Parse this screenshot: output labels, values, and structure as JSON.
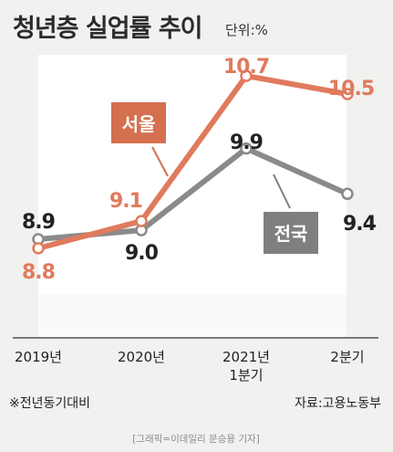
{
  "chart_data": {
    "type": "line",
    "title": "청년층 실업률 추이",
    "unit": "단위:%",
    "categories": [
      "2019년",
      "2020년",
      "2021년\n1분기",
      "2분기"
    ],
    "series": [
      {
        "name": "서울",
        "values": [
          8.8,
          9.1,
          10.7,
          10.5
        ],
        "color": "#e07a5c"
      },
      {
        "name": "전국",
        "values": [
          8.9,
          9.0,
          9.9,
          9.4
        ],
        "color": "#8a8a8a"
      }
    ],
    "value_labels": {
      "서울": [
        "8.8",
        "9.1",
        "10.7",
        "10.5"
      ],
      "전국": [
        "8.9",
        "9.0",
        "9.9",
        "9.4"
      ]
    },
    "note": "※전년동기대비",
    "source": "자료:고용노동부",
    "credit": "[그래픽=이데일리 문승용 기자]",
    "grid": false,
    "legend": "inline labels"
  }
}
